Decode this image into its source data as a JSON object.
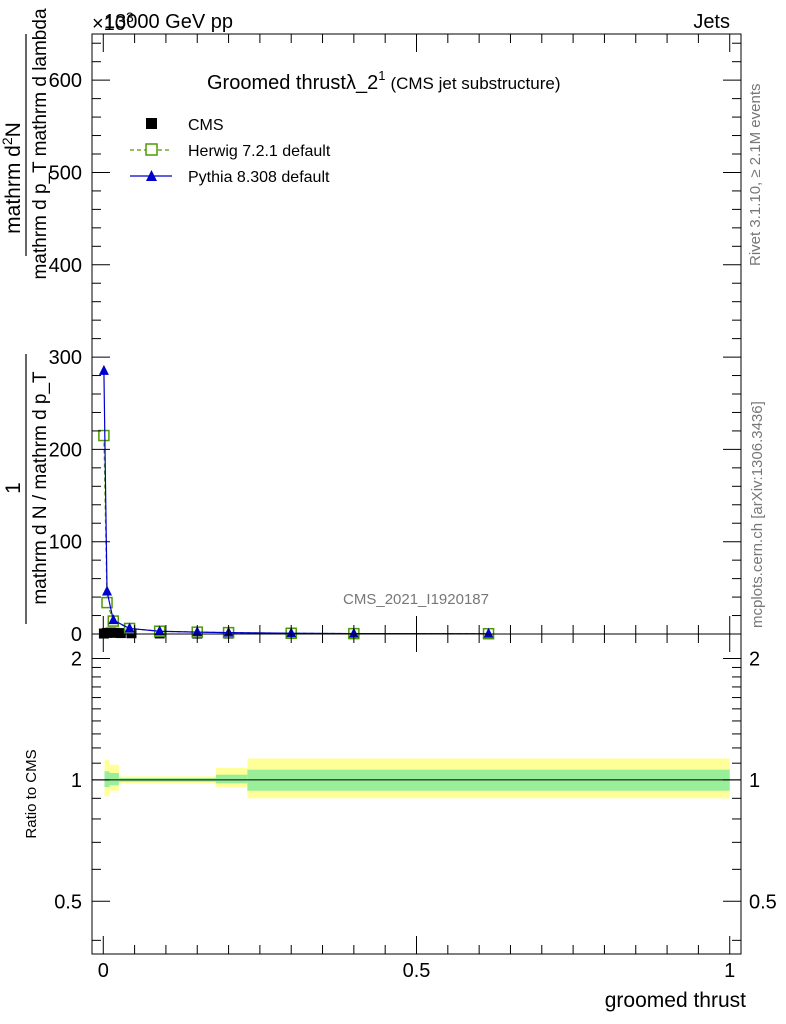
{
  "header": {
    "energy_label": "13000 GeV pp",
    "process_label": "Jets",
    "exponent_label": "×10",
    "exponent_sup": "3"
  },
  "side_text": {
    "rivet": "Rivet 3.1.10, ≥ 2.1M events",
    "mcplots": "mcplots.cern.ch [arXiv:1306.3436]"
  },
  "chart_data": [
    {
      "type": "line",
      "title": "Groomed thrustλ_2¹",
      "title_main": "Groomed thrustλ_2",
      "title_sup": "1",
      "subtitle": "(CMS jet substructure)",
      "analysis_tag": "CMS_2021_I1920187",
      "xlabel": "",
      "ylabel_numerator": "mathrm d²N",
      "ylabel_numerator_main": "mathrm d",
      "ylabel_numerator_sup": "2",
      "ylabel_numerator_tail": "N",
      "ylabel_denominator": "mathrm d p_T mathrm d lambda",
      "ylabel_prefix": "1",
      "ylabel_prefix_denominator": "mathrm d N / mathrm d p_T",
      "xlim": [
        0,
        1
      ],
      "ylim": [
        0,
        650
      ],
      "y_scale_multiplier": 1000,
      "x_ticks": [
        "0",
        "0.5",
        "1"
      ],
      "y_ticks": [
        "0",
        "100",
        "200",
        "300",
        "400",
        "500",
        "600"
      ],
      "legend_position": "top-left",
      "series": [
        {
          "name": "CMS",
          "color": "#000000",
          "marker": "square-filled",
          "x": [
            0.001,
            0.006,
            0.012,
            0.018,
            0.028,
            0.045,
            0.09,
            0.15,
            0.2,
            0.615
          ],
          "y": [
            0.5,
            1.2,
            1.5,
            1.3,
            1.0,
            0.8,
            0.6,
            0.5,
            0.4,
            0.3
          ]
        },
        {
          "name": "Herwig 7.2.1 default",
          "color": "#4e9a06",
          "marker": "square-open",
          "x": [
            0.001,
            0.006,
            0.016,
            0.042,
            0.09,
            0.15,
            0.2,
            0.3,
            0.4,
            0.615
          ],
          "y": [
            215,
            34,
            14,
            6,
            3,
            2,
            1.5,
            0.8,
            0.4,
            0.3
          ]
        },
        {
          "name": "Pythia 8.308 default",
          "color": "#0000cc",
          "marker": "triangle-filled",
          "x": [
            0.001,
            0.006,
            0.016,
            0.042,
            0.09,
            0.15,
            0.2,
            0.3,
            0.4,
            0.615
          ],
          "y": [
            285,
            46,
            15,
            6,
            3,
            2,
            1.5,
            0.8,
            0.4,
            0.3
          ]
        }
      ]
    },
    {
      "type": "area",
      "title": "",
      "ylabel": "Ratio to CMS",
      "xlabel": "groomed thrust",
      "xlim": [
        0,
        1
      ],
      "ylim": [
        0.37,
        2.3
      ],
      "y_scale": "log",
      "x_ticks": [
        "0",
        "0.5",
        "1"
      ],
      "y_ticks": [
        "0.5",
        "1",
        "2"
      ],
      "reference_line": 1,
      "bands": {
        "x_edges": [
          0.002,
          0.01,
          0.025,
          0.18,
          0.23,
          1.0
        ],
        "total_low": [
          0.91,
          0.94,
          0.98,
          0.96,
          0.9
        ],
        "total_high": [
          1.12,
          1.09,
          1.02,
          1.07,
          1.13
        ],
        "stat_low": [
          0.96,
          0.97,
          0.99,
          0.98,
          0.94
        ],
        "stat_high": [
          1.05,
          1.04,
          1.01,
          1.03,
          1.06
        ],
        "total_color": "#ffff99",
        "stat_color": "#99ee99"
      }
    }
  ]
}
